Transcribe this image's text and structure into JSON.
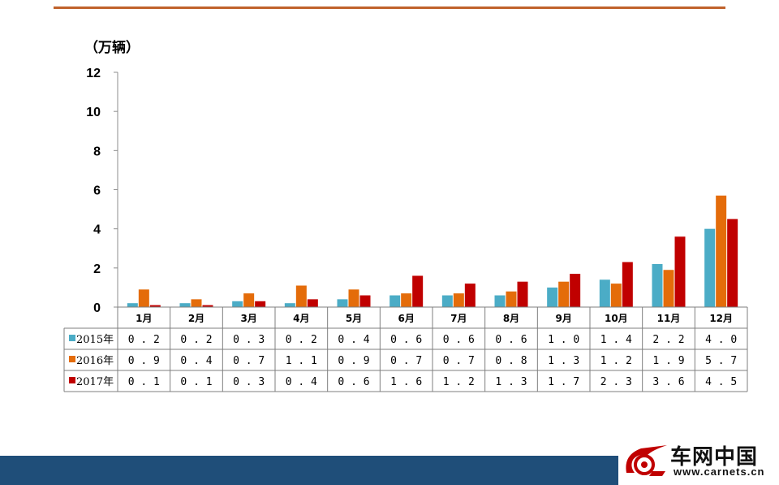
{
  "chart_data": {
    "type": "bar",
    "unit_label": "（万辆）",
    "categories": [
      "1月",
      "2月",
      "3月",
      "4月",
      "5月",
      "6月",
      "7月",
      "8月",
      "9月",
      "10月",
      "11月",
      "12月"
    ],
    "series": [
      {
        "name": "2015年",
        "color": "#4bacc6",
        "values": [
          0.2,
          0.2,
          0.3,
          0.2,
          0.4,
          0.6,
          0.6,
          0.6,
          1.0,
          1.4,
          2.2,
          4.0
        ],
        "labels": [
          "0.2",
          "0.2",
          "0.3",
          "0.2",
          "0.4",
          "0.6",
          "0.6",
          "0.6",
          "1.0",
          "1.4",
          "2.2",
          "4.0"
        ]
      },
      {
        "name": "2016年",
        "color": "#e46c0a",
        "values": [
          0.9,
          0.4,
          0.7,
          1.1,
          0.9,
          0.7,
          0.7,
          0.8,
          1.3,
          1.2,
          1.9,
          5.7
        ],
        "labels": [
          "0.9",
          "0.4",
          "0.7",
          "1.1",
          "0.9",
          "0.7",
          "0.7",
          "0.8",
          "1.3",
          "1.2",
          "1.9",
          "5.7"
        ]
      },
      {
        "name": "2017年",
        "color": "#c00000",
        "values": [
          0.1,
          0.1,
          0.3,
          0.4,
          0.6,
          1.6,
          1.2,
          1.3,
          1.7,
          2.3,
          3.6,
          4.5
        ],
        "labels": [
          "0.1",
          "0.1",
          "0.3",
          "0.4",
          "0.6",
          "1.6",
          "1.2",
          "1.3",
          "1.7",
          "2.3",
          "3.6",
          "4.5"
        ]
      }
    ],
    "ylim": [
      0,
      12
    ],
    "yticks": [
      "0",
      "2",
      "4",
      "6",
      "8",
      "10",
      "12"
    ],
    "grid": false,
    "legend": "data-table-below"
  },
  "branding": {
    "logo_text": "车网中国",
    "logo_url": "www.carnets.cn",
    "accent_color": "#c0622b",
    "band_color": "#1f4e79"
  }
}
